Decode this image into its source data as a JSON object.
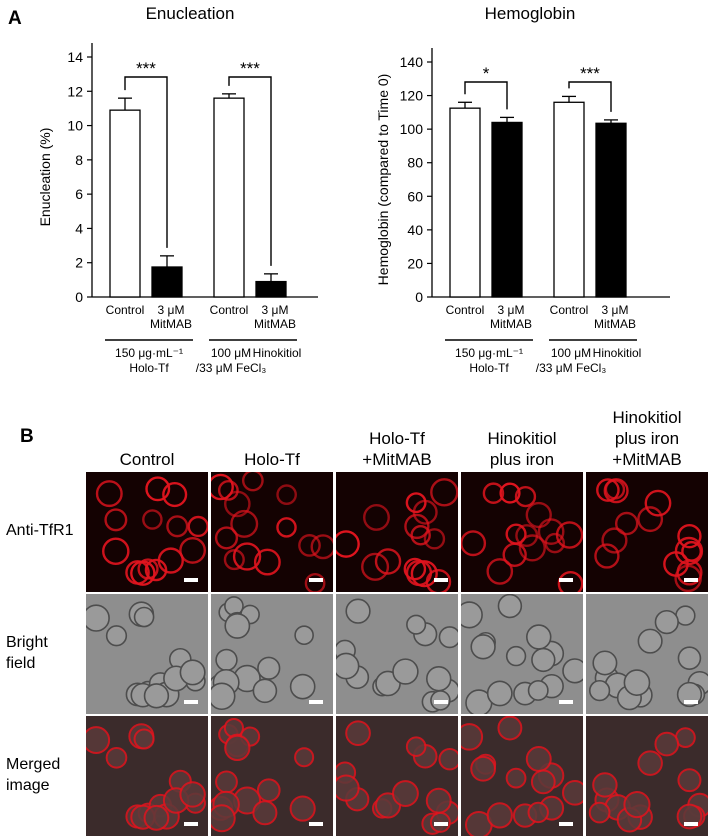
{
  "panel_a": {
    "letter": "A",
    "group_labels": {
      "control": "Control",
      "mitmab": [
        "3 μM",
        "MitMAB"
      ],
      "holo_tf": [
        "150 μg·mL⁻¹",
        "Holo-Tf"
      ],
      "hinokitiol_left": [
        "100 μM",
        "/33 μM FeCl₃"
      ],
      "hinokitiol_right": "Hinokitiol"
    }
  },
  "chart_data": [
    {
      "type": "bar",
      "title": "Enucleation",
      "ylabel": "Enucleation (%)",
      "ylim": [
        0,
        14
      ],
      "yticks": [
        0,
        2,
        4,
        6,
        8,
        10,
        12,
        14
      ],
      "categories": [
        "Control",
        "3 μM MitMAB",
        "Control",
        "3 μM MitMAB"
      ],
      "values": [
        10.9,
        1.75,
        11.6,
        0.9
      ],
      "errors": [
        0.7,
        0.65,
        0.25,
        0.45
      ],
      "fill": [
        "white",
        "black",
        "white",
        "black"
      ],
      "significance": [
        {
          "between": [
            0,
            1
          ],
          "label": "***"
        },
        {
          "between": [
            2,
            3
          ],
          "label": "***"
        }
      ]
    },
    {
      "type": "bar",
      "title": "Hemoglobin",
      "ylabel": "Hemoglobin (compared to Time 0)",
      "ylim": [
        0,
        140
      ],
      "yticks": [
        0,
        20,
        40,
        60,
        80,
        100,
        120,
        140
      ],
      "categories": [
        "Control",
        "3 μM MitMAB",
        "Control",
        "3 μM MitMAB"
      ],
      "values": [
        112.5,
        104,
        116,
        103.5
      ],
      "errors": [
        3.5,
        3,
        3.5,
        2
      ],
      "fill": [
        "white",
        "black",
        "white",
        "black"
      ],
      "significance": [
        {
          "between": [
            0,
            1
          ],
          "label": "*"
        },
        {
          "between": [
            2,
            3
          ],
          "label": "***"
        }
      ]
    }
  ],
  "panel_b": {
    "letter": "B",
    "columns": [
      "Control",
      "Holo-Tf",
      "Holo-Tf\n+MitMAB",
      "Hinokitiol\nplus iron",
      "Hinokitiol\nplus iron\n+MitMAB"
    ],
    "rows": [
      "Anti-TfR1",
      "Bright\nfield",
      "Merged\nimage"
    ],
    "colors": {
      "fluorescence": "#e0141e",
      "background": "#140202"
    }
  }
}
